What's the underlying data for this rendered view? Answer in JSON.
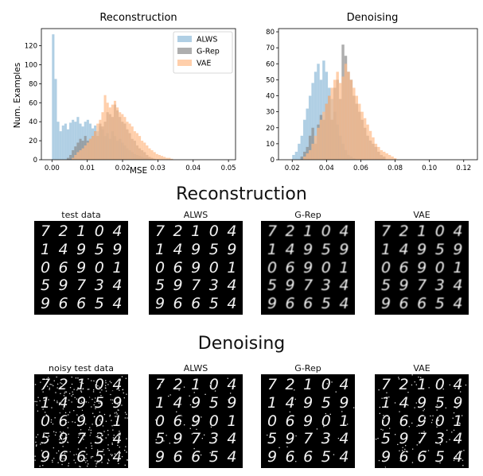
{
  "chart_data": [
    {
      "type": "histogram",
      "title": "Reconstruction",
      "xlabel": "MSE",
      "ylabel": "Num. Examples",
      "xlim": [
        -0.003,
        0.052
      ],
      "ylim": [
        0,
        138
      ],
      "xticks": [
        "0.00",
        "0.01",
        "0.02",
        "0.03",
        "0.04",
        "0.05"
      ],
      "yticks": [
        "0",
        "20",
        "40",
        "60",
        "80",
        "100",
        "120"
      ],
      "legend": "top-right",
      "bin_start": 0.0,
      "bin_width": 0.0007,
      "series": [
        {
          "name": "ALWS",
          "color": "#8fbbd9",
          "values": [
            132,
            85,
            40,
            30,
            36,
            38,
            32,
            39,
            42,
            40,
            45,
            38,
            35,
            40,
            42,
            38,
            33,
            36,
            30,
            35,
            32,
            25,
            28,
            22,
            30,
            25,
            20,
            22,
            18,
            15,
            12,
            10,
            8,
            6,
            5,
            4,
            3,
            2,
            2,
            1
          ]
        },
        {
          "name": "G-Rep",
          "color": "#8c8c8c",
          "values": [
            0,
            0,
            0,
            0,
            0,
            0,
            2,
            5,
            10,
            14,
            18,
            22,
            20,
            25,
            20,
            22,
            25,
            30,
            25,
            38,
            35,
            40,
            50,
            48,
            45,
            58,
            52,
            45,
            40,
            38,
            32,
            28,
            22,
            20,
            15,
            12,
            10,
            8,
            5,
            3,
            2,
            1
          ]
        },
        {
          "name": "VAE",
          "color": "#ffbb88",
          "values": [
            0,
            0,
            0,
            0,
            0,
            0,
            0,
            0,
            2,
            5,
            8,
            10,
            12,
            15,
            18,
            22,
            25,
            30,
            38,
            42,
            50,
            68,
            60,
            55,
            58,
            62,
            55,
            50,
            48,
            45,
            40,
            38,
            35,
            30,
            28,
            25,
            20,
            18,
            15,
            12,
            10,
            8,
            6,
            5,
            4,
            3,
            2,
            2,
            1
          ]
        }
      ]
    },
    {
      "type": "histogram",
      "title": "Denoising",
      "xlabel": "",
      "ylabel": "",
      "xlim": [
        0.012,
        0.128
      ],
      "ylim": [
        0,
        82
      ],
      "xticks": [
        "0.02",
        "0.04",
        "0.06",
        "0.08",
        "0.10",
        "0.12"
      ],
      "yticks": [
        "0",
        "10",
        "20",
        "30",
        "40",
        "50",
        "60",
        "70",
        "80"
      ],
      "bin_start": 0.02,
      "bin_width": 0.0016,
      "series": [
        {
          "name": "ALWS",
          "color": "#8fbbd9",
          "values": [
            3,
            5,
            10,
            15,
            25,
            32,
            40,
            48,
            55,
            60,
            50,
            62,
            55,
            45,
            38,
            30,
            22,
            15,
            10,
            6,
            3,
            2,
            1
          ]
        },
        {
          "name": "G-Rep",
          "color": "#8c8c8c",
          "values": [
            0,
            0,
            0,
            2,
            5,
            8,
            15,
            20,
            10,
            22,
            28,
            25,
            35,
            40,
            25,
            45,
            50,
            38,
            72,
            65,
            55,
            50,
            40,
            35,
            30,
            25,
            20,
            15,
            12,
            10,
            8,
            5,
            3,
            2
          ]
        },
        {
          "name": "VAE",
          "color": "#ffbb88",
          "values": [
            0,
            0,
            0,
            0,
            2,
            4,
            6,
            10,
            15,
            20,
            25,
            30,
            35,
            40,
            45,
            50,
            55,
            48,
            52,
            60,
            55,
            50,
            45,
            40,
            35,
            30,
            26,
            22,
            18,
            14,
            10,
            8,
            6,
            5,
            4,
            3,
            2,
            1
          ]
        }
      ]
    }
  ],
  "sections": {
    "reconstruction": "Reconstruction",
    "denoising": "Denoising"
  },
  "panels": {
    "reconstruction": [
      "test data",
      "ALWS",
      "G-Rep",
      "VAE"
    ],
    "denoising": [
      "noisy test data",
      "ALWS",
      "G-Rep",
      "VAE"
    ]
  },
  "digit_grid": [
    [
      "7",
      "2",
      "1",
      "0",
      "4"
    ],
    [
      "1",
      "4",
      "9",
      "5",
      "9"
    ],
    [
      "0",
      "6",
      "9",
      "0",
      "1"
    ],
    [
      "5",
      "9",
      "7",
      "3",
      "4"
    ],
    [
      "9",
      "6",
      "6",
      "5",
      "4"
    ]
  ]
}
